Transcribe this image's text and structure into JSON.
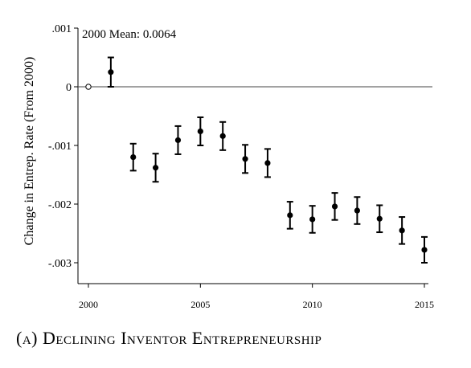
{
  "chart_data": {
    "type": "scatter",
    "title": "",
    "xlabel": "",
    "ylabel": "Change in Entrep. Rate (From 2000)",
    "annotation": "2000 Mean: 0.0064",
    "xlim": [
      2000,
      2015
    ],
    "ylim": [
      -0.003,
      0.001
    ],
    "xticks": [
      "2000",
      "2005",
      "2010",
      "2015"
    ],
    "yticks": [
      ".001",
      "0",
      "-.001",
      "-.002",
      "-.003"
    ],
    "ytick_values": [
      0.001,
      0,
      -0.001,
      -0.002,
      -0.003
    ],
    "xtick_values": [
      2000,
      2005,
      2010,
      2015
    ],
    "reference_line": 0,
    "baseline_point": {
      "x": 2000,
      "y": 0
    },
    "series": [
      {
        "x": [
          2001,
          2002,
          2003,
          2004,
          2005,
          2006,
          2007,
          2008,
          2009,
          2010,
          2011,
          2012,
          2013,
          2014,
          2015
        ],
        "y": [
          0.00025,
          -0.0012,
          -0.00138,
          -0.00091,
          -0.00076,
          -0.00084,
          -0.00123,
          -0.0013,
          -0.00219,
          -0.00226,
          -0.00204,
          -0.00211,
          -0.00225,
          -0.00245,
          -0.00278
        ],
        "ci_low": [
          0.0,
          -0.00143,
          -0.00162,
          -0.00115,
          -0.001,
          -0.00108,
          -0.00147,
          -0.00154,
          -0.00242,
          -0.00249,
          -0.00227,
          -0.00234,
          -0.00248,
          -0.00268,
          -0.003
        ],
        "ci_high": [
          0.0005,
          -0.00097,
          -0.00114,
          -0.00067,
          -0.00052,
          -0.0006,
          -0.00099,
          -0.00106,
          -0.00196,
          -0.00203,
          -0.00181,
          -0.00188,
          -0.00202,
          -0.00222,
          -0.00256
        ]
      }
    ]
  },
  "caption": "(a) Declining Inventor Entrepreneurship"
}
